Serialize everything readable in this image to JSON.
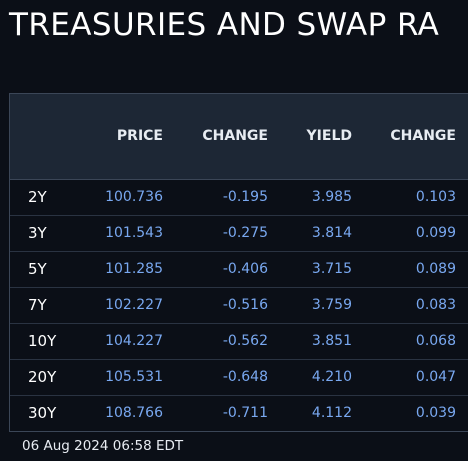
{
  "title": "TREASURIES AND SWAP RA",
  "columns": {
    "price": "PRICE",
    "change": "CHANGE",
    "yield": "YIELD",
    "yield_change": "CHANGE"
  },
  "rows": [
    {
      "tenor": "2Y",
      "price": "100.736",
      "change": "-0.195",
      "yield": "3.985",
      "yield_change": "0.103"
    },
    {
      "tenor": "3Y",
      "price": "101.543",
      "change": "-0.275",
      "yield": "3.814",
      "yield_change": "0.099"
    },
    {
      "tenor": "5Y",
      "price": "101.285",
      "change": "-0.406",
      "yield": "3.715",
      "yield_change": "0.089"
    },
    {
      "tenor": "7Y",
      "price": "102.227",
      "change": "-0.516",
      "yield": "3.759",
      "yield_change": "0.083"
    },
    {
      "tenor": "10Y",
      "price": "104.227",
      "change": "-0.562",
      "yield": "3.851",
      "yield_change": "0.068"
    },
    {
      "tenor": "20Y",
      "price": "105.531",
      "change": "-0.648",
      "yield": "4.210",
      "yield_change": "0.047"
    },
    {
      "tenor": "30Y",
      "price": "108.766",
      "change": "-0.711",
      "yield": "4.112",
      "yield_change": "0.039"
    }
  ],
  "timestamp": "06 Aug 2024 06:58 EDT",
  "colors": {
    "background": "#0b0f17",
    "header_background": "#1d2735",
    "value_blue": "#79a8f0",
    "text_white": "#ffffff"
  }
}
